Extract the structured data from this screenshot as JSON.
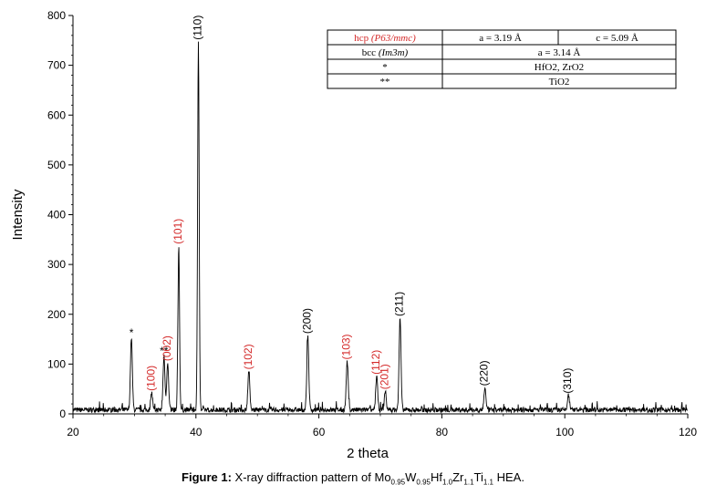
{
  "chart_data": {
    "type": "line",
    "xlabel": "2 theta",
    "ylabel": "Intensity",
    "xlim": [
      20,
      120
    ],
    "ylim": [
      0,
      800
    ],
    "xticks": [
      20,
      40,
      60,
      80,
      100,
      120
    ],
    "yticks": [
      0,
      100,
      200,
      300,
      400,
      500,
      600,
      700,
      800
    ],
    "grid": false,
    "peaks": [
      {
        "x": 29.5,
        "y": 145,
        "label": "*",
        "phase": "oxide"
      },
      {
        "x": 32.8,
        "y": 35,
        "label": "(100)",
        "phase": "hcp"
      },
      {
        "x": 34.8,
        "y": 108,
        "label": "**",
        "phase": "oxide"
      },
      {
        "x": 35.4,
        "y": 95,
        "label": "(002)",
        "phase": "hcp"
      },
      {
        "x": 37.2,
        "y": 330,
        "label": "(101)",
        "phase": "hcp"
      },
      {
        "x": 40.4,
        "y": 740,
        "label": "(110)",
        "phase": "bcc"
      },
      {
        "x": 48.6,
        "y": 78,
        "label": "(102)",
        "phase": "hcp"
      },
      {
        "x": 58.2,
        "y": 150,
        "label": "(200)",
        "phase": "bcc"
      },
      {
        "x": 64.6,
        "y": 98,
        "label": "(103)",
        "phase": "hcp"
      },
      {
        "x": 69.4,
        "y": 68,
        "label": "(112)",
        "phase": "hcp"
      },
      {
        "x": 70.8,
        "y": 38,
        "label": "(201)",
        "phase": "hcp"
      },
      {
        "x": 73.2,
        "y": 185,
        "label": "(211)",
        "phase": "bcc"
      },
      {
        "x": 87.0,
        "y": 45,
        "label": "(220)",
        "phase": "bcc"
      },
      {
        "x": 100.6,
        "y": 30,
        "label": "(310)",
        "phase": "bcc"
      }
    ],
    "legend_table": {
      "rows": [
        {
          "phase": "hcp",
          "space_group": "P63/mmc",
          "a": "a = 3.19 Å",
          "c": "c = 5.09 Å"
        },
        {
          "phase": "bcc",
          "space_group": "Im3m",
          "a": "a = 3.14 Å",
          "c": ""
        },
        {
          "phase": "*",
          "space_group": "",
          "a": "HfO2, ZrO2",
          "c": ""
        },
        {
          "phase": "**",
          "space_group": "",
          "a": "TiO2",
          "c": ""
        }
      ],
      "position": "top-right"
    },
    "colors": {
      "hcp_label": "#d42a2a",
      "bcc_label": "#000000",
      "trace": "#000000"
    }
  },
  "caption": {
    "prefix": "Figure 1:",
    "text_before": " X-ray diffraction pattern of ",
    "formula": [
      {
        "el": "Mo",
        "sub": "0.95"
      },
      {
        "el": "W",
        "sub": "0.95"
      },
      {
        "el": "Hf",
        "sub": "1.0"
      },
      {
        "el": "Zr",
        "sub": "1.1"
      },
      {
        "el": "Ti",
        "sub": "1.1"
      }
    ],
    "suffix": " HEA."
  }
}
